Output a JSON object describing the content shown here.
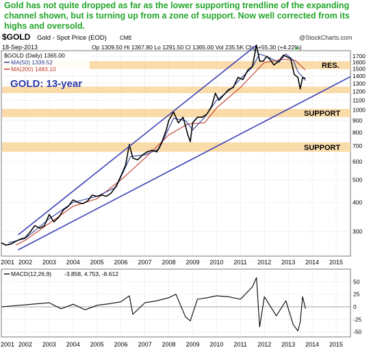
{
  "headline": "Gold has not quite dropped as far as the lower supporting trendline of the expanding channel shown, but is turning up from a zone of support. Now well corrected from its highs and oversold.",
  "header": {
    "symbol": "$GOLD",
    "name": "Gold - Spot Price (EOD)",
    "exchange": "CME",
    "watermark": "@StockCharts.com",
    "date": "18-Sep-2013",
    "ohlc": "Op 1309.50  Hi 1367.80  Lo 1291.50  Cl 1365.00  Vol 235.5K  Chg +55.30 (+4.22%)",
    "chg_arrow": "▲"
  },
  "legend": {
    "price": "$GOLD (Daily) 1365.00",
    "ma50": "MA(50) 1339.52",
    "ma200": "MA(200) 1483.10"
  },
  "colors": {
    "price": "#000000",
    "ma50": "#2c3f9a",
    "ma200": "#c0392b",
    "trendline": "#3a3fb5",
    "support_band": "#f9d69c",
    "headline": "#22a52a",
    "title": "#2d39a8",
    "macd_hist": "#9a9a9a"
  },
  "chart_data": [
    {
      "type": "line",
      "title": "GOLD: 13-year",
      "y_scale": "log",
      "ylim": [
        235,
        1950
      ],
      "xlim": [
        2001.0,
        2015.6
      ],
      "x_ticks": [
        "2001",
        "2002",
        "2003",
        "2004",
        "2005",
        "2006",
        "2007",
        "2008",
        "2009",
        "2010",
        "2011",
        "2012",
        "2013",
        "2014",
        "2015"
      ],
      "y_ticks": [
        300,
        400,
        500,
        600,
        700,
        800,
        900,
        1000,
        1100,
        1200,
        1300,
        1400,
        1500,
        1600,
        1700,
        1800,
        1900
      ],
      "grid": true,
      "legend_position": "top-left",
      "series": [
        {
          "name": "$GOLD (Daily)",
          "x": [
            2001.0,
            2001.2,
            2001.4,
            2001.6,
            2001.8,
            2002.0,
            2002.2,
            2002.4,
            2002.6,
            2002.8,
            2003.0,
            2003.2,
            2003.4,
            2003.6,
            2003.8,
            2004.0,
            2004.2,
            2004.4,
            2004.6,
            2004.8,
            2005.0,
            2005.2,
            2005.4,
            2005.6,
            2005.8,
            2006.0,
            2006.2,
            2006.35,
            2006.5,
            2006.7,
            2006.9,
            2007.1,
            2007.3,
            2007.5,
            2007.7,
            2007.9,
            2008.0,
            2008.2,
            2008.4,
            2008.6,
            2008.8,
            2008.9,
            2009.0,
            2009.2,
            2009.4,
            2009.6,
            2009.8,
            2009.95,
            2010.1,
            2010.3,
            2010.5,
            2010.7,
            2010.9,
            2011.1,
            2011.3,
            2011.5,
            2011.67,
            2011.8,
            2011.95,
            2012.1,
            2012.25,
            2012.4,
            2012.6,
            2012.8,
            2012.95,
            2013.1,
            2013.25,
            2013.4,
            2013.5,
            2013.6,
            2013.72
          ],
          "values": [
            268,
            262,
            265,
            272,
            278,
            282,
            298,
            318,
            310,
            318,
            355,
            330,
            345,
            372,
            385,
            410,
            400,
            395,
            405,
            430,
            425,
            430,
            425,
            440,
            470,
            520,
            580,
            710,
            620,
            610,
            640,
            660,
            670,
            660,
            720,
            820,
            900,
            980,
            880,
            930,
            780,
            730,
            880,
            930,
            930,
            960,
            1040,
            1180,
            1100,
            1160,
            1220,
            1250,
            1380,
            1350,
            1480,
            1540,
            1900,
            1620,
            1620,
            1700,
            1640,
            1560,
            1620,
            1720,
            1690,
            1660,
            1420,
            1380,
            1230,
            1380,
            1365
          ]
        },
        {
          "name": "MA(50)",
          "x": [
            2001.3,
            2002.0,
            2003.0,
            2004.0,
            2005.0,
            2005.8,
            2006.4,
            2007.0,
            2007.6,
            2008.2,
            2008.7,
            2009.0,
            2009.5,
            2010.0,
            2010.6,
            2011.0,
            2011.5,
            2011.8,
            2012.2,
            2012.6,
            2012.9,
            2013.2,
            2013.4,
            2013.72
          ],
          "values": [
            268,
            280,
            340,
            400,
            425,
            465,
            630,
            640,
            680,
            920,
            900,
            820,
            930,
            1100,
            1230,
            1360,
            1530,
            1740,
            1680,
            1600,
            1740,
            1640,
            1460,
            1339.52
          ]
        },
        {
          "name": "MA(200)",
          "x": [
            2001.6,
            2002.0,
            2003.0,
            2004.0,
            2005.0,
            2006.0,
            2007.0,
            2008.0,
            2008.8,
            2009.5,
            2010.0,
            2011.0,
            2012.0,
            2012.8,
            2013.3,
            2013.72
          ],
          "values": [
            262,
            275,
            325,
            385,
            415,
            500,
            620,
            780,
            870,
            880,
            1020,
            1250,
            1600,
            1650,
            1630,
            1483.1
          ]
        }
      ],
      "trendlines": [
        {
          "name": "upper channel",
          "x": [
            2001.7,
            2011.67
          ],
          "values": [
            290,
            1900
          ]
        },
        {
          "name": "lower channel",
          "x": [
            2001.7,
            2015.6
          ],
          "values": [
            250,
            1390
          ]
        }
      ],
      "support_zones": [
        {
          "label": "RES.",
          "low": 1500,
          "high": 1620
        },
        {
          "label": "",
          "low": 1180,
          "high": 1260
        },
        {
          "label": "SUPPORT",
          "low": 930,
          "high": 1010
        },
        {
          "label": "SUPPORT",
          "low": 660,
          "high": 725
        }
      ]
    },
    {
      "type": "line",
      "title": "MACD(12,26,9)",
      "legend_values": "-3.858, 4.753, -8.612",
      "ylim": [
        -60,
        75
      ],
      "y_ticks": [
        -50,
        -25,
        0,
        25,
        50
      ],
      "x_ticks": [
        "2001",
        "2002",
        "2003",
        "2004",
        "2005",
        "2006",
        "2007",
        "2008",
        "2009",
        "2010",
        "2011",
        "2012",
        "2013",
        "2014",
        "2015"
      ],
      "series": [
        {
          "name": "MACD(12,26,9)",
          "x": [
            2001.0,
            2001.5,
            2002.0,
            2002.5,
            2003.0,
            2003.5,
            2004.0,
            2004.5,
            2005.0,
            2005.5,
            2006.0,
            2006.35,
            2006.5,
            2007.0,
            2007.5,
            2008.0,
            2008.3,
            2008.7,
            2008.9,
            2009.2,
            2009.6,
            2010.0,
            2010.5,
            2011.0,
            2011.5,
            2011.67,
            2011.8,
            2012.0,
            2012.5,
            2012.9,
            2013.2,
            2013.4,
            2013.5,
            2013.6,
            2013.72
          ],
          "values": [
            0,
            2,
            4,
            6,
            8,
            -4,
            5,
            -6,
            3,
            6,
            10,
            22,
            -15,
            8,
            12,
            18,
            25,
            -20,
            -28,
            15,
            18,
            22,
            20,
            15,
            40,
            58,
            -40,
            20,
            -18,
            12,
            -35,
            -48,
            -30,
            20,
            -3.858
          ]
        }
      ]
    }
  ]
}
